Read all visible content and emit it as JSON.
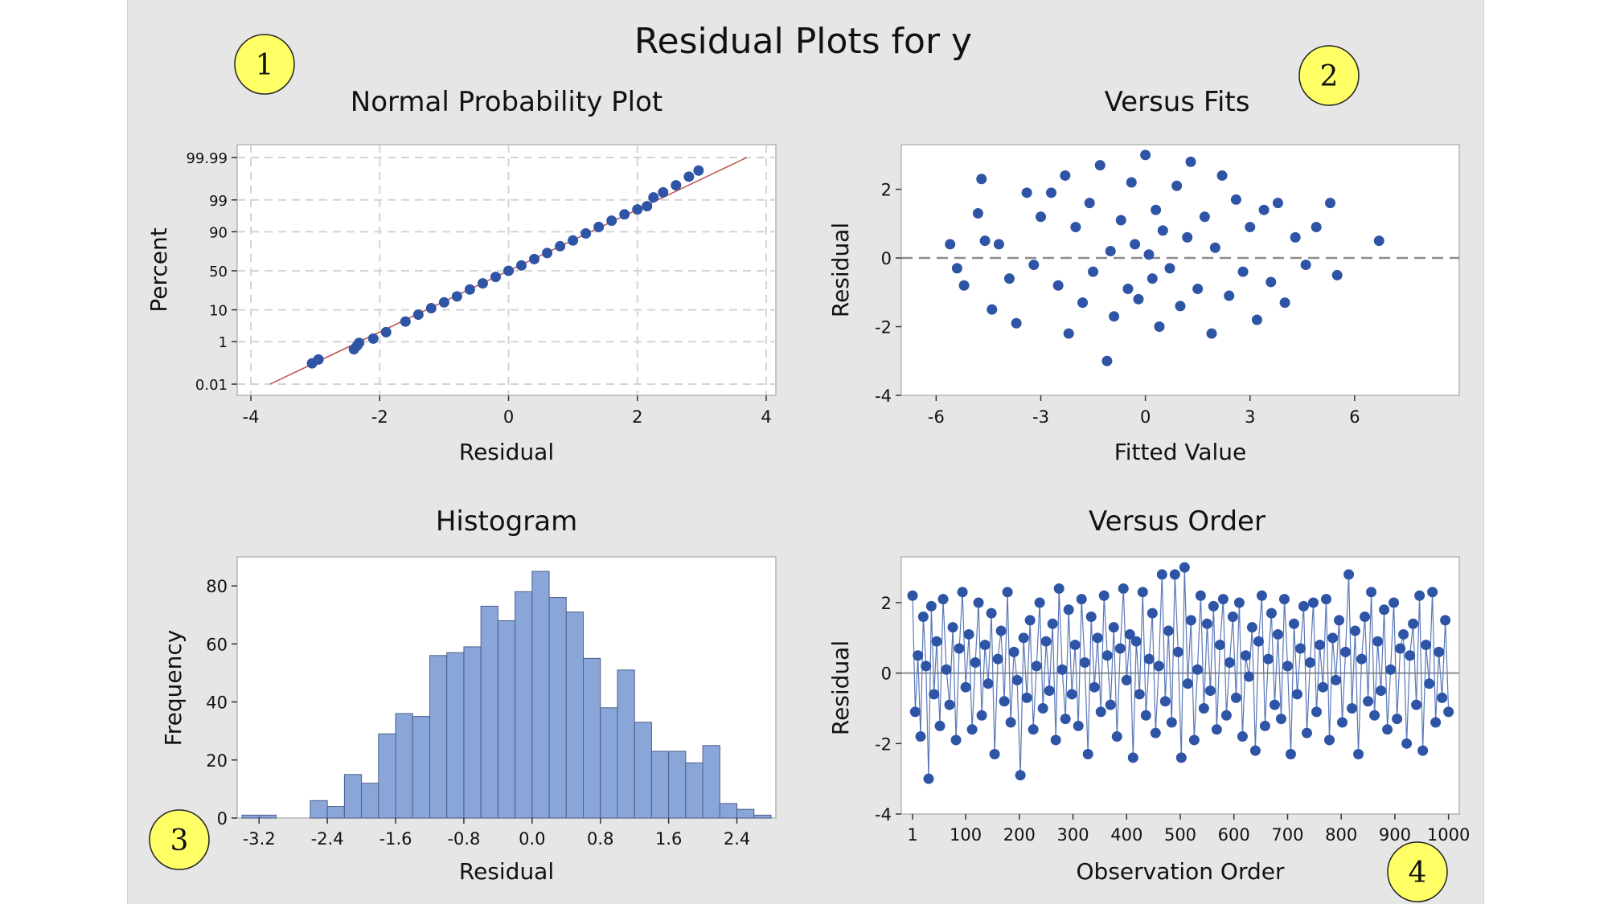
{
  "figure": {
    "title": "Residual Plots for y",
    "badges": [
      "1",
      "2",
      "3",
      "4"
    ],
    "colors": {
      "background": "#e6e6e6",
      "plot_area": "#ffffff",
      "marker": "#2e54a6",
      "histogram_bar": "#8aa6d8",
      "histogram_edge": "#4a5f8a",
      "reference_line": "#c0504d",
      "zero_line": "#8c8c8c",
      "badge_fill": "#ffff66"
    }
  },
  "chart_data": [
    {
      "type": "scatter",
      "title": "Normal Probability Plot",
      "xlabel": "Residual",
      "ylabel": "Percent",
      "xlim": [
        -4,
        4
      ],
      "xticks": [
        -4,
        -2,
        0,
        2,
        4
      ],
      "yscale": "normal-probability",
      "yticks": [
        0.01,
        1,
        10,
        50,
        90,
        99,
        99.99
      ],
      "ytick_labels": [
        "0.01",
        "1",
        "10",
        "50",
        "90",
        "99",
        "99.99"
      ],
      "grid": true,
      "reference_line": {
        "from": [
          -3.7,
          0.01
        ],
        "to": [
          3.7,
          99.99
        ]
      },
      "series": [
        {
          "points": [
            [
              -3.05,
              0.12
            ],
            [
              -2.95,
              0.18
            ],
            [
              -2.4,
              0.5
            ],
            [
              -2.35,
              0.7
            ],
            [
              -2.32,
              0.9
            ],
            [
              -2.1,
              1.3
            ],
            [
              -1.9,
              2.2
            ],
            [
              -1.6,
              4.8
            ],
            [
              -1.4,
              7.5
            ],
            [
              -1.2,
              11
            ],
            [
              -1.0,
              15
            ],
            [
              -0.8,
              20
            ],
            [
              -0.6,
              27
            ],
            [
              -0.4,
              34
            ],
            [
              -0.2,
              42
            ],
            [
              0.0,
              50
            ],
            [
              0.2,
              57
            ],
            [
              0.4,
              65
            ],
            [
              0.6,
              72
            ],
            [
              0.8,
              79
            ],
            [
              1.0,
              84
            ],
            [
              1.2,
              89
            ],
            [
              1.4,
              92.5
            ],
            [
              1.6,
              95
            ],
            [
              1.8,
              96.8
            ],
            [
              2.0,
              97.8
            ],
            [
              2.15,
              98.3
            ],
            [
              2.25,
              99.2
            ],
            [
              2.4,
              99.5
            ],
            [
              2.6,
              99.75
            ],
            [
              2.8,
              99.9
            ],
            [
              2.95,
              99.95
            ]
          ]
        }
      ]
    },
    {
      "type": "scatter",
      "title": "Versus Fits",
      "xlabel": "Fitted Value",
      "ylabel": "Residual",
      "xlim": [
        -7,
        9
      ],
      "ylim": [
        -4,
        3.3
      ],
      "xticks": [
        -6,
        -3,
        0,
        3,
        6
      ],
      "yticks": [
        -4,
        -2,
        0,
        2
      ],
      "zero_line": 0,
      "grid": false,
      "series": [
        {
          "points": [
            [
              -5.6,
              0.4
            ],
            [
              -5.4,
              -0.3
            ],
            [
              -5.2,
              -0.8
            ],
            [
              -4.8,
              1.3
            ],
            [
              -4.7,
              2.3
            ],
            [
              -4.6,
              0.5
            ],
            [
              -4.4,
              -1.5
            ],
            [
              -4.2,
              0.4
            ],
            [
              -3.9,
              -0.6
            ],
            [
              -3.7,
              -1.9
            ],
            [
              -3.4,
              1.9
            ],
            [
              -3.2,
              -0.2
            ],
            [
              -3.0,
              1.2
            ],
            [
              -2.7,
              1.9
            ],
            [
              -2.5,
              -0.8
            ],
            [
              -2.3,
              2.4
            ],
            [
              -2.2,
              -2.2
            ],
            [
              -2.0,
              0.9
            ],
            [
              -1.8,
              -1.3
            ],
            [
              -1.6,
              1.6
            ],
            [
              -1.5,
              -0.4
            ],
            [
              -1.3,
              2.7
            ],
            [
              -1.1,
              -3.0
            ],
            [
              -1.0,
              0.2
            ],
            [
              -0.9,
              -1.7
            ],
            [
              -0.7,
              1.1
            ],
            [
              -0.5,
              -0.9
            ],
            [
              -0.4,
              2.2
            ],
            [
              -0.3,
              0.4
            ],
            [
              -0.2,
              -1.2
            ],
            [
              0.0,
              3.0
            ],
            [
              0.1,
              0.1
            ],
            [
              0.2,
              -0.6
            ],
            [
              0.3,
              1.4
            ],
            [
              0.4,
              -2.0
            ],
            [
              0.5,
              0.8
            ],
            [
              0.7,
              -0.3
            ],
            [
              0.9,
              2.1
            ],
            [
              1.0,
              -1.4
            ],
            [
              1.2,
              0.6
            ],
            [
              1.3,
              2.8
            ],
            [
              1.5,
              -0.9
            ],
            [
              1.7,
              1.2
            ],
            [
              1.9,
              -2.2
            ],
            [
              2.0,
              0.3
            ],
            [
              2.2,
              2.4
            ],
            [
              2.4,
              -1.1
            ],
            [
              2.6,
              1.7
            ],
            [
              2.8,
              -0.4
            ],
            [
              3.0,
              0.9
            ],
            [
              3.2,
              -1.8
            ],
            [
              3.4,
              1.4
            ],
            [
              3.6,
              -0.7
            ],
            [
              3.8,
              1.6
            ],
            [
              4.0,
              -1.3
            ],
            [
              4.3,
              0.6
            ],
            [
              4.6,
              -0.2
            ],
            [
              4.9,
              0.9
            ],
            [
              5.3,
              1.6
            ],
            [
              5.5,
              -0.5
            ],
            [
              6.7,
              0.5
            ]
          ]
        }
      ]
    },
    {
      "type": "bar",
      "title": "Histogram",
      "xlabel": "Residual",
      "ylabel": "Frequency",
      "xticks": [
        -3.2,
        -2.4,
        -1.6,
        -0.8,
        0.0,
        0.8,
        1.6,
        2.4
      ],
      "xtick_labels": [
        "-3.2",
        "-2.4",
        "-1.6",
        "-0.8",
        "0.0",
        "0.8",
        "1.6",
        "2.4"
      ],
      "ylim": [
        0,
        90
      ],
      "yticks": [
        0,
        20,
        40,
        60,
        80
      ],
      "bin_start": -3.4,
      "bin_width": 0.2,
      "values": [
        1,
        1,
        0,
        0,
        6,
        4,
        15,
        12,
        29,
        36,
        35,
        56,
        57,
        59,
        73,
        68,
        78,
        85,
        76,
        71,
        55,
        38,
        51,
        33,
        23,
        23,
        19,
        25,
        5,
        3,
        1
      ]
    },
    {
      "type": "line",
      "title": "Versus Order",
      "xlabel": "Observation Order",
      "ylabel": "Residual",
      "xlim": [
        -20,
        1020
      ],
      "ylim": [
        -4,
        3.3
      ],
      "xticks": [
        1,
        100,
        200,
        300,
        400,
        500,
        600,
        700,
        800,
        900,
        1000
      ],
      "yticks": [
        -4,
        -2,
        0,
        2
      ],
      "zero_line": 0,
      "grid": false,
      "series": [
        {
          "x": [
            1,
            6,
            11,
            16,
            21,
            26,
            31,
            36,
            41,
            46,
            52,
            58,
            64,
            70,
            76,
            82,
            88,
            94,
            100,
            106,
            112,
            118,
            124,
            130,
            136,
            142,
            148,
            154,
            160,
            166,
            172,
            178,
            184,
            190,
            196,
            202,
            208,
            214,
            220,
            226,
            232,
            238,
            244,
            250,
            256,
            262,
            268,
            274,
            280,
            286,
            292,
            298,
            304,
            310,
            316,
            322,
            328,
            334,
            340,
            346,
            352,
            358,
            364,
            370,
            376,
            382,
            388,
            394,
            400,
            406,
            412,
            418,
            424,
            430,
            436,
            442,
            448,
            454,
            460,
            466,
            472,
            478,
            484,
            490,
            496,
            502,
            508,
            514,
            520,
            526,
            532,
            538,
            544,
            550,
            556,
            562,
            568,
            574,
            580,
            586,
            592,
            598,
            604,
            610,
            616,
            622,
            628,
            634,
            640,
            646,
            652,
            658,
            664,
            670,
            676,
            682,
            688,
            694,
            700,
            706,
            712,
            718,
            724,
            730,
            736,
            742,
            748,
            754,
            760,
            766,
            772,
            778,
            784,
            790,
            796,
            802,
            808,
            814,
            820,
            826,
            832,
            838,
            844,
            850,
            856,
            862,
            868,
            874,
            880,
            886,
            892,
            898,
            904,
            910,
            916,
            922,
            928,
            934,
            940,
            946,
            952,
            958,
            964,
            970,
            976,
            982,
            988,
            994,
            1000
          ],
          "y": [
            2.2,
            -1.1,
            0.5,
            -1.8,
            1.6,
            0.2,
            -3.0,
            1.9,
            -0.6,
            0.9,
            -1.5,
            2.1,
            0.1,
            -0.9,
            1.3,
            -1.9,
            0.7,
            2.3,
            -0.4,
            1.1,
            -1.6,
            0.3,
            2.0,
            -1.2,
            0.8,
            -0.3,
            1.7,
            -2.3,
            0.4,
            1.2,
            -0.8,
            2.3,
            -1.4,
            0.6,
            -0.2,
            -2.9,
            1.0,
            -0.7,
            1.5,
            -1.6,
            0.2,
            2.0,
            -1.0,
            0.9,
            -0.5,
            1.4,
            -1.9,
            2.4,
            0.1,
            -1.3,
            1.8,
            -0.6,
            0.8,
            -1.5,
            2.1,
            0.3,
            -2.3,
            1.6,
            -0.4,
            1.0,
            -1.1,
            2.2,
            0.5,
            -0.9,
            1.3,
            -1.8,
            0.7,
            2.4,
            -0.2,
            1.1,
            -2.4,
            0.9,
            -0.6,
            2.3,
            -1.2,
            0.4,
            1.7,
            -1.7,
            0.2,
            2.8,
            -0.8,
            1.2,
            -1.4,
            2.8,
            0.6,
            -2.4,
            3.0,
            -0.3,
            1.5,
            -1.9,
            0.1,
            2.2,
            -1.0,
            1.4,
            -0.5,
            1.9,
            -1.6,
            0.8,
            2.1,
            -1.2,
            0.3,
            1.6,
            -0.7,
            2.0,
            -1.8,
            0.5,
            -0.1,
            1.3,
            -2.2,
            0.9,
            2.2,
            -1.5,
            0.4,
            1.7,
            -0.9,
            1.1,
            -1.3,
            2.1,
            0.2,
            -2.3,
            1.4,
            -0.6,
            0.7,
            1.9,
            -1.7,
            0.3,
            2.0,
            -1.1,
            0.8,
            -0.4,
            2.1,
            -1.9,
            1.0,
            -0.2,
            1.5,
            -1.4,
            0.6,
            2.8,
            -1.0,
            1.2,
            -2.3,
            0.4,
            1.6,
            -0.8,
            2.3,
            -1.2,
            0.9,
            -0.5,
            1.8,
            -1.6,
            0.1,
            2.0,
            -1.3,
            0.7,
            1.1,
            -2.0,
            0.5,
            1.4,
            -0.9,
            2.2,
            -2.2,
            0.8,
            -0.3,
            2.3,
            -1.4,
            0.6,
            -0.7,
            1.5,
            -1.1
          ]
        }
      ]
    }
  ]
}
